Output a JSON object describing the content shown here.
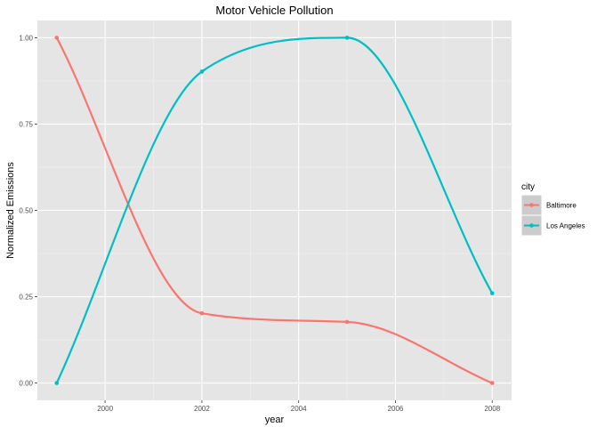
{
  "chart_data": {
    "type": "line",
    "title": "Motor Vehicle Pollution",
    "xlabel": "year",
    "ylabel": "Normalized Emissions",
    "x": [
      1999,
      2002,
      2005,
      2008
    ],
    "xlim": [
      1998.6,
      2008.4
    ],
    "ylim": [
      -0.05,
      1.05
    ],
    "x_ticks": [
      2000,
      2002,
      2004,
      2006,
      2008
    ],
    "x_tick_labels": [
      "2000",
      "2002",
      "2004",
      "2006",
      "2008"
    ],
    "y_ticks": [
      0,
      0.25,
      0.5,
      0.75,
      1
    ],
    "y_tick_labels": [
      "0.00",
      "0.25",
      "0.50",
      "0.75",
      "1.00"
    ],
    "grid": true,
    "smoothed": true,
    "legend": {
      "title": "city",
      "position": "right"
    },
    "series": [
      {
        "name": "Baltimore",
        "color": "#F8766D",
        "values": [
          1.0,
          0.202,
          0.177,
          0.0
        ]
      },
      {
        "name": "Los Angeles",
        "color": "#00BFC4",
        "values": [
          0.0,
          0.902,
          1.0,
          0.26
        ]
      }
    ]
  }
}
